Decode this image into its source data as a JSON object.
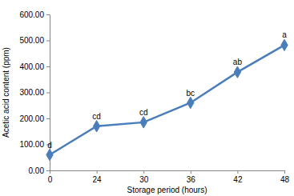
{
  "chart_data": {
    "type": "line",
    "x_label": "Storage period (hours)",
    "y_label": "Acetic acid content (ppm)",
    "categories": [
      "0",
      "24",
      "30",
      "36",
      "42",
      "48"
    ],
    "values": [
      60,
      170,
      185,
      260,
      378,
      482
    ],
    "annotations": [
      "d",
      "cd",
      "cd",
      "bc",
      "ab",
      "a"
    ],
    "color": "#4a7ebb",
    "marker": "diamond",
    "line_style": "solid",
    "grid": false,
    "ylim": [
      0,
      600
    ],
    "yticks": [
      {
        "value": 0,
        "label": "0.00"
      },
      {
        "value": 100,
        "label": "100.00"
      },
      {
        "value": 200,
        "label": "200.00"
      },
      {
        "value": 300,
        "label": "300.00"
      },
      {
        "value": 400,
        "label": "400.00"
      },
      {
        "value": 500,
        "label": "500.00"
      },
      {
        "value": 600,
        "label": "600.00"
      }
    ]
  }
}
